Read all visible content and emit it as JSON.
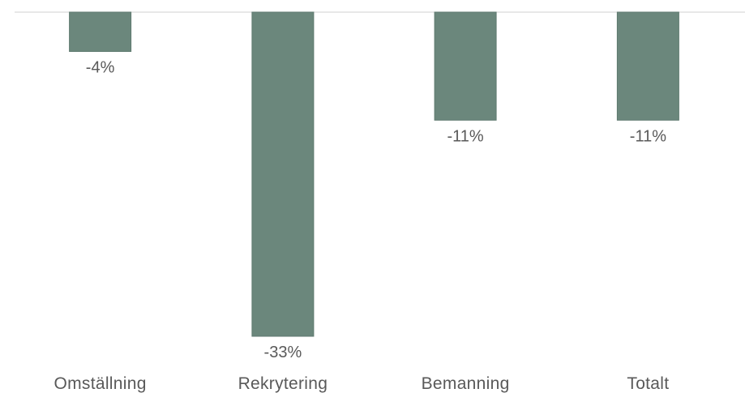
{
  "colors": {
    "bar": "#6b877c",
    "bar_edge": "#5f7a70",
    "axis": "#d9d9d9",
    "text": "#595959"
  },
  "chart_data": {
    "type": "bar",
    "categories": [
      "Omställning",
      "Rekrytering",
      "Bemanning",
      "Totalt"
    ],
    "values": [
      -4,
      -33,
      -11,
      -11
    ],
    "data_labels": [
      "-4%",
      "-33%",
      "-11%",
      "-11%"
    ],
    "title": "",
    "xlabel": "",
    "ylabel": "",
    "ylim": [
      -33,
      0
    ],
    "grid": false,
    "legend": "none"
  }
}
